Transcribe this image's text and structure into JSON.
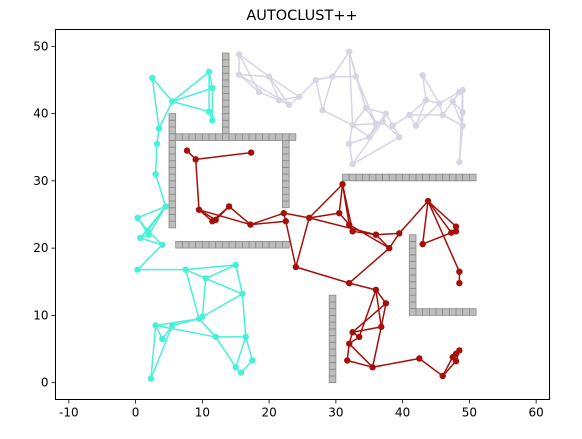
{
  "chart_data": {
    "type": "scatter",
    "title": "AUTOCLUST++",
    "xlabel": "",
    "ylabel": "",
    "xlim": [
      -12,
      62
    ],
    "ylim": [
      -2.5,
      52.5
    ],
    "xticks": [
      -10,
      0,
      10,
      20,
      30,
      40,
      50,
      60
    ],
    "yticks": [
      0,
      10,
      20,
      30,
      40,
      50
    ],
    "grid": false,
    "legend": "none",
    "obstacle_color": "#bdbdbd",
    "obstacles": [
      {
        "start": [
          13,
          36
        ],
        "end": [
          13,
          48
        ],
        "vertical": true
      },
      {
        "start": [
          6,
          36
        ],
        "end": [
          23,
          36
        ],
        "vertical": false
      },
      {
        "start": [
          22,
          26
        ],
        "end": [
          22,
          35
        ],
        "vertical": true
      },
      {
        "start": [
          5,
          23
        ],
        "end": [
          5,
          39
        ],
        "vertical": true
      },
      {
        "start": [
          6,
          20
        ],
        "end": [
          22,
          20
        ],
        "vertical": false
      },
      {
        "start": [
          31,
          30
        ],
        "end": [
          50,
          30
        ],
        "vertical": false
      },
      {
        "start": [
          41,
          10
        ],
        "end": [
          41,
          21
        ],
        "vertical": true
      },
      {
        "start": [
          42,
          10
        ],
        "end": [
          50,
          10
        ],
        "vertical": false
      },
      {
        "start": [
          29,
          0
        ],
        "end": [
          29,
          12
        ],
        "vertical": true
      }
    ],
    "series": [
      {
        "color": "#48f0d8",
        "points": [
          [
            2.5,
            45.3
          ],
          [
            11,
            46.2
          ],
          [
            5.5,
            41.8
          ],
          [
            11.5,
            43.8
          ],
          [
            11,
            40.3
          ],
          [
            11.5,
            39
          ],
          [
            3.5,
            37.8
          ],
          [
            3.2,
            35.5
          ],
          [
            3,
            31
          ],
          [
            4.5,
            26.2
          ],
          [
            0.3,
            24.5
          ],
          [
            1.8,
            22.6
          ],
          [
            2,
            22
          ],
          [
            0.7,
            21.5
          ],
          [
            4,
            20.5
          ],
          [
            0.3,
            16.8
          ],
          [
            7.5,
            16.8
          ],
          [
            10.5,
            15.5
          ],
          [
            15,
            17.5
          ],
          [
            16,
            13.2
          ],
          [
            10,
            9.8
          ],
          [
            9.5,
            9.5
          ],
          [
            5.5,
            8.5
          ],
          [
            3,
            8.5
          ],
          [
            4,
            6.5
          ],
          [
            12,
            6.8
          ],
          [
            16.5,
            6.8
          ],
          [
            17.5,
            3.3
          ],
          [
            15,
            2.3
          ],
          [
            15.8,
            1.5
          ],
          [
            2.3,
            0.6
          ]
        ],
        "edges": [
          [
            0,
            2
          ],
          [
            0,
            6
          ],
          [
            2,
            1
          ],
          [
            2,
            3
          ],
          [
            2,
            4
          ],
          [
            1,
            3
          ],
          [
            1,
            4
          ],
          [
            3,
            5
          ],
          [
            4,
            5
          ],
          [
            2,
            6
          ],
          [
            6,
            7
          ],
          [
            7,
            8
          ],
          [
            8,
            9
          ],
          [
            9,
            10
          ],
          [
            9,
            11
          ],
          [
            9,
            12
          ],
          [
            9,
            13
          ],
          [
            10,
            11
          ],
          [
            10,
            12
          ],
          [
            11,
            13
          ],
          [
            12,
            13
          ],
          [
            13,
            14
          ],
          [
            11,
            14
          ],
          [
            14,
            15
          ],
          [
            15,
            16
          ],
          [
            16,
            17
          ],
          [
            16,
            18
          ],
          [
            17,
            18
          ],
          [
            17,
            19
          ],
          [
            18,
            19
          ],
          [
            17,
            20
          ],
          [
            20,
            21
          ],
          [
            21,
            22
          ],
          [
            21,
            23
          ],
          [
            22,
            24
          ],
          [
            23,
            24
          ],
          [
            23,
            25
          ],
          [
            21,
            25
          ],
          [
            25,
            26
          ],
          [
            25,
            28
          ],
          [
            26,
            27
          ],
          [
            26,
            28
          ],
          [
            27,
            29
          ],
          [
            28,
            29
          ],
          [
            19,
            20
          ],
          [
            19,
            26
          ],
          [
            22,
            30
          ],
          [
            23,
            30
          ],
          [
            16,
            21
          ]
        ]
      },
      {
        "color": "#d8d4e4",
        "points": [
          [
            15.5,
            48.8
          ],
          [
            15.5,
            45.8
          ],
          [
            18.5,
            43.2
          ],
          [
            20,
            45.5
          ],
          [
            21.5,
            42
          ],
          [
            23,
            41.3
          ],
          [
            24.5,
            42.5
          ],
          [
            27,
            45
          ],
          [
            28,
            40.5
          ],
          [
            29.5,
            45.5
          ],
          [
            32,
            49.2
          ],
          [
            33,
            45.5
          ],
          [
            34.5,
            40.8
          ],
          [
            36,
            38.5
          ],
          [
            32.5,
            38.3
          ],
          [
            32,
            35.5
          ],
          [
            32.5,
            32.5
          ],
          [
            35,
            36.5
          ],
          [
            37.5,
            40
          ],
          [
            38.5,
            38.2
          ],
          [
            41,
            39.8
          ],
          [
            42,
            38.2
          ],
          [
            43.5,
            42
          ],
          [
            43,
            45.7
          ],
          [
            45.5,
            41.5
          ],
          [
            46,
            39.8
          ],
          [
            47.5,
            41.8
          ],
          [
            48.5,
            43.2
          ],
          [
            49,
            43.5
          ],
          [
            49,
            40.2
          ],
          [
            49,
            38.2
          ],
          [
            48.5,
            32.8
          ],
          [
            37,
            38.8
          ],
          [
            39.5,
            36.5
          ]
        ],
        "edges": [
          [
            0,
            1
          ],
          [
            0,
            2
          ],
          [
            0,
            3
          ],
          [
            1,
            2
          ],
          [
            1,
            3
          ],
          [
            2,
            4
          ],
          [
            3,
            4
          ],
          [
            3,
            5
          ],
          [
            4,
            5
          ],
          [
            4,
            6
          ],
          [
            5,
            6
          ],
          [
            6,
            7
          ],
          [
            7,
            8
          ],
          [
            7,
            9
          ],
          [
            8,
            9
          ],
          [
            9,
            10
          ],
          [
            9,
            11
          ],
          [
            10,
            11
          ],
          [
            10,
            12
          ],
          [
            11,
            12
          ],
          [
            11,
            13
          ],
          [
            12,
            13
          ],
          [
            12,
            14
          ],
          [
            13,
            14
          ],
          [
            14,
            15
          ],
          [
            15,
            16
          ],
          [
            13,
            17
          ],
          [
            14,
            17
          ],
          [
            15,
            17
          ],
          [
            17,
            18
          ],
          [
            18,
            19
          ],
          [
            19,
            20
          ],
          [
            20,
            21
          ],
          [
            21,
            22
          ],
          [
            22,
            23
          ],
          [
            23,
            24
          ],
          [
            22,
            24
          ],
          [
            24,
            25
          ],
          [
            25,
            26
          ],
          [
            26,
            27
          ],
          [
            27,
            28
          ],
          [
            28,
            29
          ],
          [
            29,
            30
          ],
          [
            30,
            31
          ],
          [
            26,
            29
          ],
          [
            26,
            30
          ],
          [
            24,
            27
          ],
          [
            20,
            22
          ],
          [
            18,
            32
          ],
          [
            32,
            33
          ],
          [
            19,
            33
          ],
          [
            13,
            32
          ],
          [
            16,
            33
          ],
          [
            16,
            32
          ],
          [
            3,
            6
          ],
          [
            28,
            31
          ],
          [
            25,
            30
          ],
          [
            10,
            14
          ],
          [
            21,
            24
          ],
          [
            1,
            5
          ],
          [
            8,
            14
          ],
          [
            12,
            18
          ],
          [
            20,
            25
          ]
        ]
      },
      {
        "color": "#a50f0a",
        "points": [
          [
            7.7,
            34.5
          ],
          [
            9,
            33.2
          ],
          [
            17.3,
            34.2
          ],
          [
            9.5,
            25.7
          ],
          [
            11.5,
            24
          ],
          [
            12,
            24.2
          ],
          [
            14,
            26.2
          ],
          [
            17.2,
            23.5
          ],
          [
            22.2,
            25.2
          ],
          [
            22.5,
            24
          ],
          [
            24,
            17.2
          ],
          [
            26,
            24.5
          ],
          [
            30.5,
            25.2
          ],
          [
            31,
            29.5
          ],
          [
            32,
            23.5
          ],
          [
            32.5,
            22.5
          ],
          [
            36,
            22
          ],
          [
            38,
            20
          ],
          [
            39.5,
            22.2
          ],
          [
            32,
            14.8
          ],
          [
            36,
            13.8
          ],
          [
            37.5,
            11.8
          ],
          [
            36.8,
            8.3
          ],
          [
            32.5,
            7.5
          ],
          [
            33.5,
            6.8
          ],
          [
            32,
            5.8
          ],
          [
            31.7,
            3.3
          ],
          [
            35.5,
            2.3
          ],
          [
            42.5,
            3.6
          ],
          [
            46,
            1
          ],
          [
            47.5,
            3.8
          ],
          [
            48,
            4.3
          ],
          [
            48.5,
            4.8
          ],
          [
            48,
            3.2
          ],
          [
            43.8,
            27
          ],
          [
            43,
            20.6
          ],
          [
            47.3,
            22.3
          ],
          [
            48,
            22.5
          ],
          [
            48,
            23.2
          ],
          [
            48.5,
            16.5
          ],
          [
            48.5,
            14.8
          ]
        ],
        "edges": [
          [
            0,
            1
          ],
          [
            1,
            2
          ],
          [
            1,
            3
          ],
          [
            3,
            4
          ],
          [
            3,
            5
          ],
          [
            4,
            6
          ],
          [
            5,
            6
          ],
          [
            6,
            7
          ],
          [
            3,
            7
          ],
          [
            7,
            8
          ],
          [
            7,
            9
          ],
          [
            8,
            9
          ],
          [
            9,
            10
          ],
          [
            10,
            11
          ],
          [
            8,
            11
          ],
          [
            11,
            12
          ],
          [
            11,
            13
          ],
          [
            12,
            13
          ],
          [
            12,
            14
          ],
          [
            13,
            14
          ],
          [
            13,
            15
          ],
          [
            14,
            15
          ],
          [
            11,
            16
          ],
          [
            15,
            16
          ],
          [
            16,
            17
          ],
          [
            16,
            18
          ],
          [
            17,
            18
          ],
          [
            14,
            17
          ],
          [
            10,
            19
          ],
          [
            17,
            19
          ],
          [
            19,
            20
          ],
          [
            20,
            21
          ],
          [
            20,
            22
          ],
          [
            21,
            22
          ],
          [
            22,
            23
          ],
          [
            23,
            24
          ],
          [
            24,
            25
          ],
          [
            23,
            25
          ],
          [
            25,
            26
          ],
          [
            26,
            27
          ],
          [
            25,
            27
          ],
          [
            27,
            22
          ],
          [
            21,
            23
          ],
          [
            27,
            28
          ],
          [
            28,
            29
          ],
          [
            29,
            30
          ],
          [
            30,
            31
          ],
          [
            31,
            32
          ],
          [
            29,
            33
          ],
          [
            33,
            32
          ],
          [
            18,
            34
          ],
          [
            34,
            35
          ],
          [
            34,
            36
          ],
          [
            35,
            36
          ],
          [
            36,
            37
          ],
          [
            37,
            38
          ],
          [
            34,
            38
          ],
          [
            34,
            39
          ],
          [
            39,
            40
          ],
          [
            20,
            24
          ]
        ]
      }
    ]
  }
}
